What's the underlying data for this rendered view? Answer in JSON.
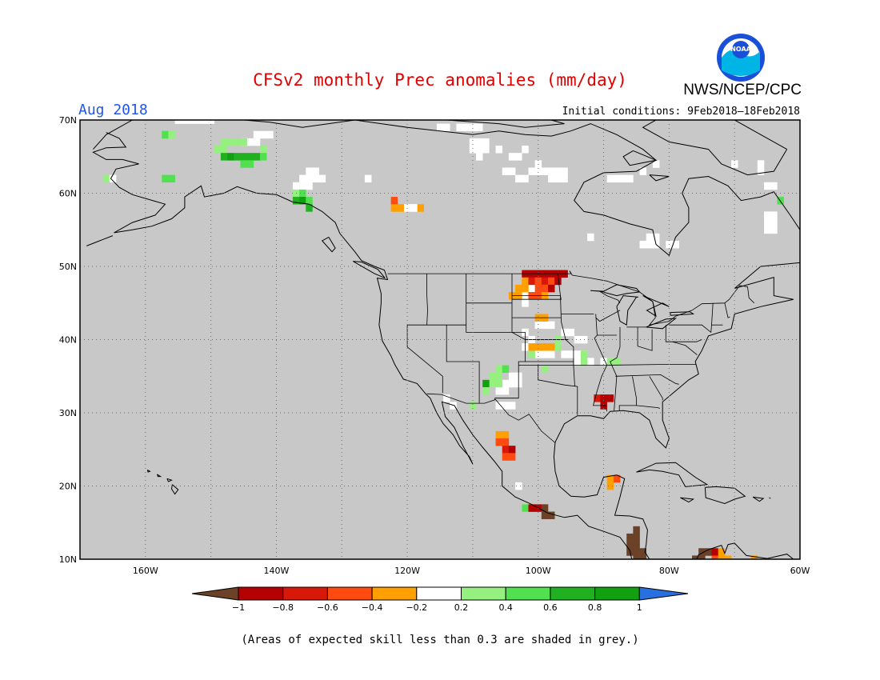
{
  "header": {
    "title": "CFSv2 monthly Prec anomalies (mm/day)",
    "organization": "NWS/NCEP/CPC",
    "logo_text": "NOAA",
    "target_month": "Aug 2018",
    "initial_conditions": "Initial conditions: 9Feb2018–18Feb2018"
  },
  "map": {
    "lat_labels": [
      "70N",
      "60N",
      "50N",
      "40N",
      "30N",
      "20N",
      "10N"
    ],
    "lon_labels": [
      "160W",
      "140W",
      "120W",
      "100W",
      "80W",
      "60W"
    ],
    "lat_values": [
      70,
      60,
      50,
      40,
      30,
      20,
      10
    ],
    "lon_values": [
      -160,
      -140,
      -120,
      -100,
      -80,
      -60
    ],
    "extent": {
      "lon_min": -170,
      "lon_max": -60,
      "lat_min": 10,
      "lat_max": 70
    },
    "grid": "dotted",
    "background_color": "#c8c8c8",
    "line_color": "#000000"
  },
  "colorbar": {
    "tick_labels": [
      "−1",
      "−0.8",
      "−0.6",
      "−0.4",
      "−0.2",
      "0.2",
      "0.4",
      "0.6",
      "0.8",
      "1"
    ],
    "colors": {
      "below_-1": "#6b4228",
      "-1_-0.8": "#b40000",
      "-0.8_-0.6": "#d81808",
      "-0.6_-0.4": "#ff4a10",
      "-0.4_-0.2": "#ffa000",
      "-0.2_0.2": "#ffffff",
      "0.2_0.4": "#96f080",
      "0.4_0.6": "#50e050",
      "0.6_0.8": "#20b020",
      "0.8_1": "#10a010",
      "above_1": "#2870e0"
    }
  },
  "footnote": "(Areas of expected skill less than 0.3 are shaded in grey.)"
}
